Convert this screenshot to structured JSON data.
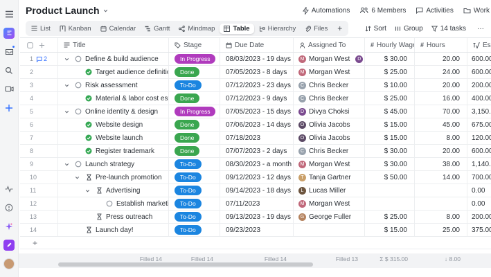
{
  "topbar": {
    "title": "Product Launch",
    "actions": [
      {
        "icon": "bolt-icon",
        "label": "Automations"
      },
      {
        "icon": "members-icon",
        "label": "6 Members"
      },
      {
        "icon": "chat-icon",
        "label": "Activities"
      },
      {
        "icon": "folder-icon",
        "label": "Work"
      }
    ]
  },
  "toolbar": {
    "tabs": [
      {
        "icon": "list-icon",
        "label": "List"
      },
      {
        "icon": "kanban-icon",
        "label": "Kanban"
      },
      {
        "icon": "calendar-icon",
        "label": "Calendar"
      },
      {
        "icon": "gantt-icon",
        "label": "Gantt"
      },
      {
        "icon": "mindmap-icon",
        "label": "Mindmap"
      },
      {
        "icon": "table-icon",
        "label": "Table"
      },
      {
        "icon": "hierarchy-icon",
        "label": "Hierarchy"
      },
      {
        "icon": "files-icon",
        "label": "Files"
      }
    ],
    "active_tab": "Table",
    "right": [
      {
        "icon": "sort-icon",
        "label": "Sort"
      },
      {
        "icon": "group-icon",
        "label": "Group"
      },
      {
        "icon": "filter-icon",
        "label": "14 tasks"
      },
      {
        "icon": "more-icon",
        "label": "···"
      }
    ]
  },
  "table": {
    "columns": [
      {
        "key": "title",
        "label": "Title",
        "icon": "text-icon"
      },
      {
        "key": "stage",
        "label": "Stage",
        "icon": "tag-icon"
      },
      {
        "key": "due",
        "label": "Due Date",
        "icon": "calendar-icon"
      },
      {
        "key": "assigned",
        "label": "Assigned To",
        "icon": "person-icon"
      },
      {
        "key": "wage",
        "label": "Hourly Wage",
        "icon": "number-icon"
      },
      {
        "key": "hours",
        "label": "Hours",
        "icon": "number-icon"
      },
      {
        "key": "est",
        "label": "Es",
        "icon": "formula-icon"
      }
    ],
    "stage_colors": {
      "In Progress": "#b03bbd",
      "Done": "#3aa64f",
      "To-Do": "#1b85e0"
    },
    "avatar_colors": {
      "Morgan West": "#c0687a",
      "Divya": "#7a4a8f",
      "Divya Choksi": "#7a4a8f",
      "Chris Becker": "#98a2ad",
      "Olivia Jacobs": "#5c4a66",
      "Tanja Gartner": "#caa06a",
      "Lucas Miller": "#6d553f",
      "George Fuller": "#b5835f"
    },
    "rows": [
      {
        "num": "1",
        "comments": "2",
        "level": 0,
        "expand": true,
        "status": "circle",
        "title": "Define & build audience",
        "stage": "In Progress",
        "due": "08/03/2023 - 19 days",
        "assignees": [
          "Morgan West",
          "Divya"
        ],
        "wage": "$ 30.00",
        "hours": "20.00",
        "est": "600.00"
      },
      {
        "num": "2",
        "level": 1,
        "status": "done",
        "title": "Target audience definition & analy",
        "stage": "Done",
        "due": "07/05/2023 - 8 days",
        "assignees": [
          "Morgan West"
        ],
        "wage": "$ 25.00",
        "hours": "24.00",
        "est": "600.00"
      },
      {
        "num": "3",
        "level": 0,
        "expand": true,
        "status": "circle",
        "title": "Risk assessment",
        "stage": "To-Do",
        "due": "07/12/2023 - 23 days",
        "assignees": [
          "Chris Becker"
        ],
        "wage": "$ 10.00",
        "hours": "20.00",
        "est": "200.00"
      },
      {
        "num": "4",
        "level": 1,
        "status": "done",
        "title": "Material & labor cost estimate",
        "stage": "Done",
        "due": "07/12/2023 - 9 days",
        "assignees": [
          "Chris Becker"
        ],
        "wage": "$ 25.00",
        "hours": "16.00",
        "est": "400.00"
      },
      {
        "num": "5",
        "level": 0,
        "expand": true,
        "status": "circle",
        "title": "Online identity & design",
        "stage": "In Progress",
        "due": "07/05/2023 - 15 days",
        "assignees": [
          "Divya Choksi"
        ],
        "wage": "$ 45.00",
        "hours": "70.00",
        "est": "3,150.00"
      },
      {
        "num": "6",
        "level": 1,
        "status": "done",
        "title": "Website design",
        "stage": "Done",
        "due": "07/06/2023 - 14 days",
        "assignees": [
          "Olivia Jacobs"
        ],
        "wage": "$ 15.00",
        "hours": "45.00",
        "est": "675.00"
      },
      {
        "num": "7",
        "level": 1,
        "status": "done",
        "title": "Website launch",
        "stage": "Done",
        "due": "07/18/2023",
        "assignees": [
          "Olivia Jacobs"
        ],
        "wage": "$ 15.00",
        "hours": "8.00",
        "est": "120.00"
      },
      {
        "num": "8",
        "level": 1,
        "status": "done",
        "title": "Register trademark",
        "stage": "Done",
        "due": "07/07/2023 - 2 days",
        "assignees": [
          "Chris Becker"
        ],
        "wage": "$ 30.00",
        "hours": "20.00",
        "est": "600.00"
      },
      {
        "num": "9",
        "level": 0,
        "expand": true,
        "status": "circle",
        "title": "Launch strategy",
        "stage": "To-Do",
        "due": "08/30/2023 - a month",
        "assignees": [
          "Morgan West"
        ],
        "wage": "$ 30.00",
        "hours": "38.00",
        "est": "1,140.00"
      },
      {
        "num": "10",
        "level": 1,
        "expand": true,
        "status": "pending",
        "title": "Pre-launch promotion",
        "stage": "To-Do",
        "due": "09/12/2023 - 12 days",
        "assignees": [
          "Tanja Gartner"
        ],
        "wage": "$ 50.00",
        "hours": "14.00",
        "est": "700.00"
      },
      {
        "num": "11",
        "level": 2,
        "expand": true,
        "status": "pending",
        "title": "Advertising",
        "stage": "To-Do",
        "due": "09/14/2023 - 18 days",
        "assignees": [
          "Lucas Miller"
        ],
        "wage": "",
        "hours": "",
        "est": "0.00"
      },
      {
        "num": "12",
        "level": 3,
        "status": "circle",
        "title": "Establish marketing budg",
        "stage": "To-Do",
        "due": "07/11/2023",
        "assignees": [
          "Morgan West"
        ],
        "wage": "",
        "hours": "",
        "est": "0.00"
      },
      {
        "num": "13",
        "level": 2,
        "status": "pending",
        "title": "Press outreach",
        "stage": "To-Do",
        "due": "09/13/2023 - 19 days",
        "assignees": [
          "George Fuller"
        ],
        "wage": "$ 25.00",
        "hours": "8.00",
        "est": "200.00"
      },
      {
        "num": "14",
        "level": 1,
        "status": "pending",
        "title": "Launch day!",
        "stage": "To-Do",
        "due": "09/23/2023",
        "assignees": [],
        "wage": "$ 15.00",
        "hours": "25.00",
        "est": "375.00"
      }
    ],
    "footer_stats": [
      "Filled 14",
      "Filled 14",
      "Filled 14",
      "Filled 13",
      "Σ  $ 315.00",
      "↓  8.00"
    ]
  },
  "colors": {
    "accent_blue": "#3370ff",
    "in_progress": "#b03bbd",
    "done": "#3aa64f",
    "todo": "#1b85e0"
  }
}
